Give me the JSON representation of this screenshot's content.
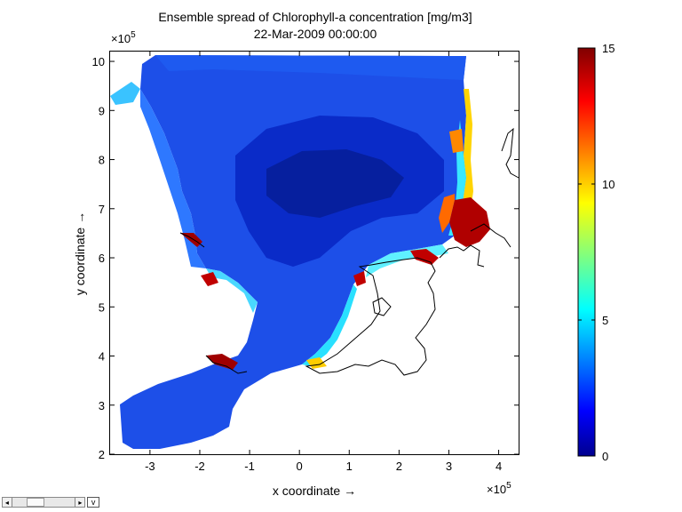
{
  "chart_data": {
    "type": "heatmap",
    "title": "Ensemble spread of Chlorophyll-a concentration [mg/m3]",
    "subtitle": "22-Mar-2009 00:00:00",
    "xlabel": "x coordinate →",
    "ylabel": "y coordinate →",
    "x_exponent": "×10",
    "x_exponent_power": "5",
    "y_exponent": "×10",
    "y_exponent_power": "5",
    "xlim": [
      -3.8,
      4.4
    ],
    "ylim": [
      2.0,
      10.2
    ],
    "x_ticks": [
      -3,
      -2,
      -1,
      0,
      1,
      2,
      3,
      4
    ],
    "x_tick_labels": [
      "-3",
      "-2",
      "-1",
      "0",
      "1",
      "2",
      "3",
      "4"
    ],
    "y_ticks": [
      2,
      3,
      4,
      5,
      6,
      7,
      8,
      9,
      10
    ],
    "y_tick_labels": [
      "2",
      "3",
      "4",
      "5",
      "6",
      "7",
      "8",
      "9",
      "10"
    ],
    "colorbar": {
      "colormap": "jet",
      "range": [
        0,
        15
      ],
      "ticks": [
        0,
        5,
        10,
        15
      ],
      "tick_labels": [
        "0",
        "5",
        "10",
        "15"
      ]
    },
    "colors": {
      "jet_low": "#00008f",
      "jet_mid_low": "#0040ff",
      "jet_cyan": "#00ffff",
      "jet_yellow": "#ffff00",
      "jet_high": "#800000",
      "land_outline": "#000000"
    }
  },
  "scrollbar": {
    "left_arrow": "◂",
    "right_arrow": "▸",
    "menu_glyph": "v"
  }
}
